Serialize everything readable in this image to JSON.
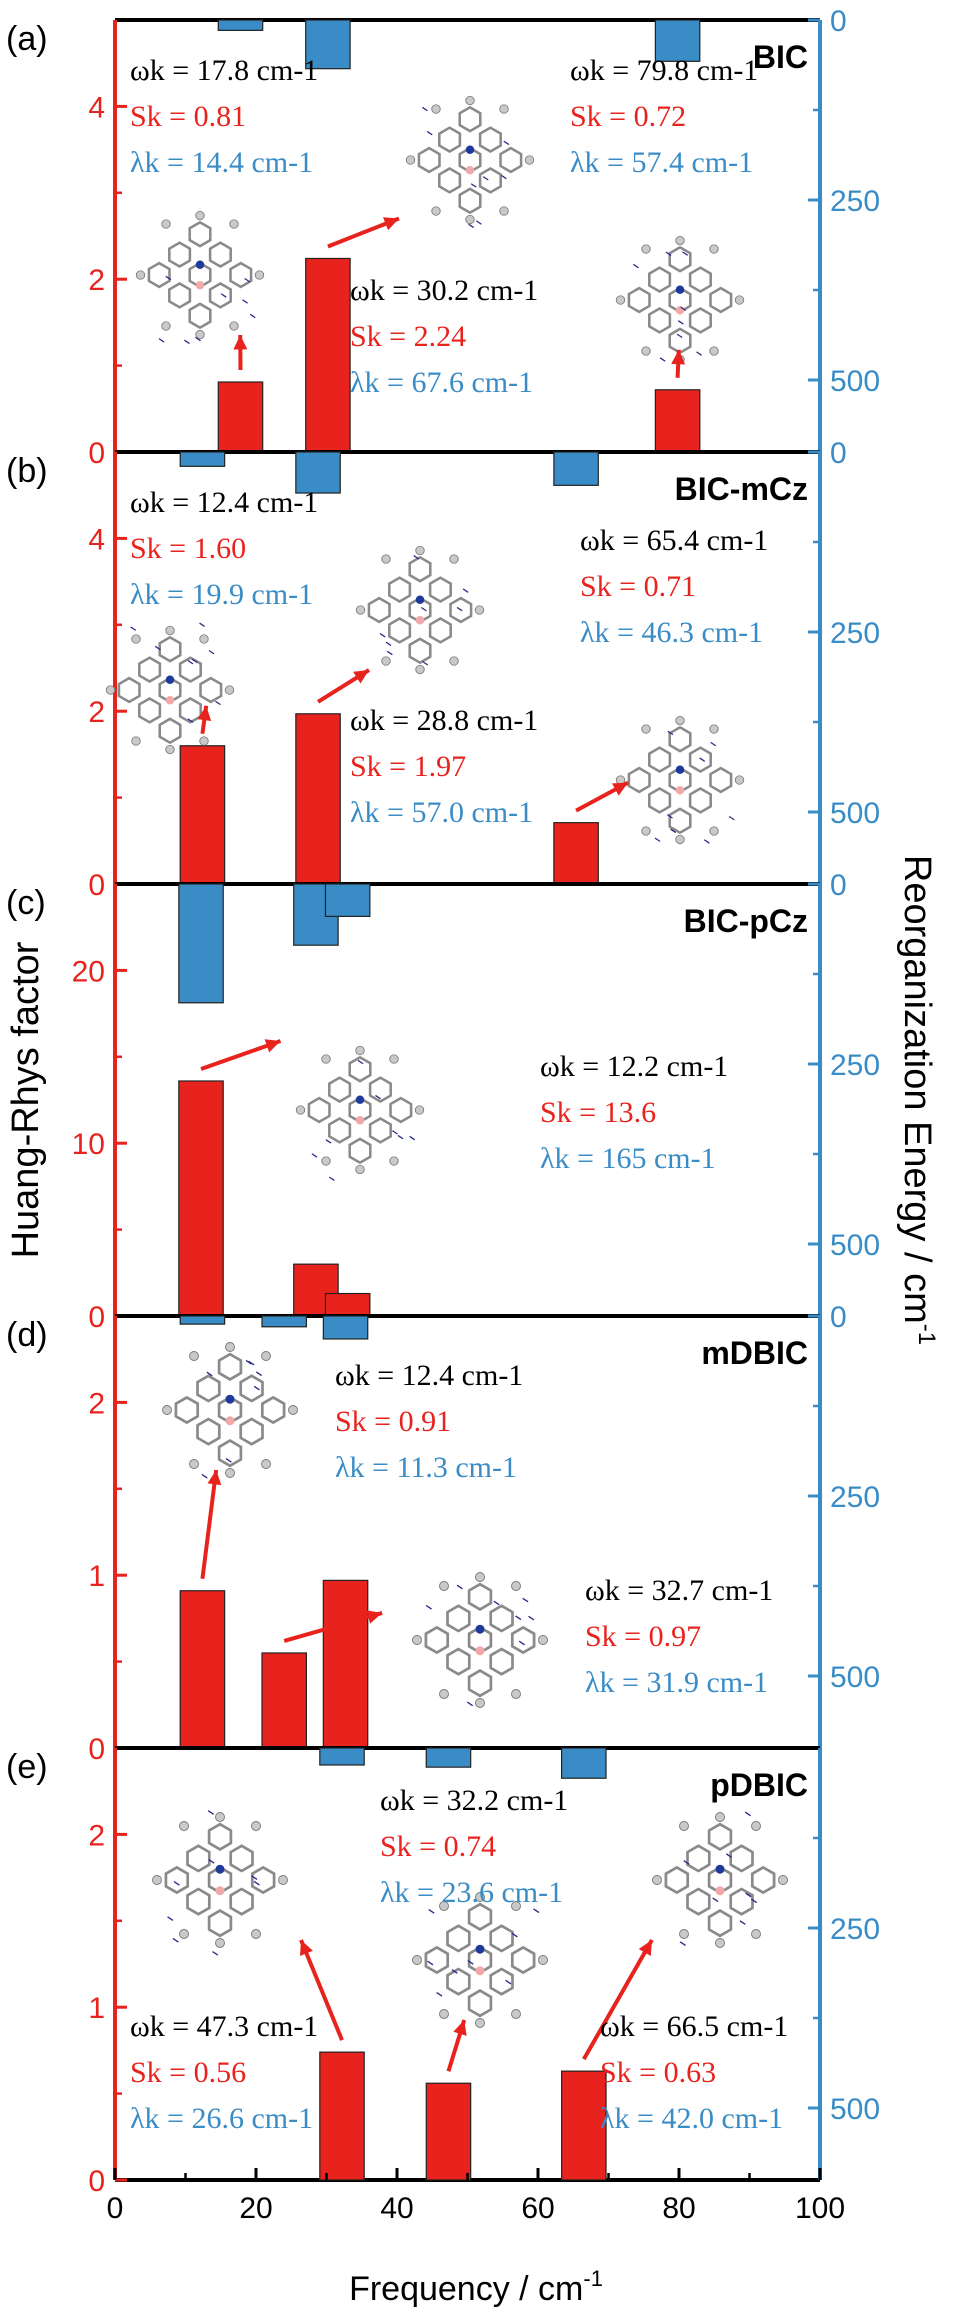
{
  "figure": {
    "xlabel": "Frequency / cm",
    "xlabel_sup": "-1",
    "left_ylabel": "Huang-Rhys factor",
    "right_ylabel": "Reorganization Energy / cm",
    "right_ylabel_sup": "-1",
    "xlim": [
      0,
      100
    ],
    "xticks": [
      "0",
      "20",
      "40",
      "60",
      "80",
      "100"
    ],
    "colors": {
      "huang_rhys": "#e8231d",
      "reorganization": "#3a8cc6",
      "axis_left": "#e8231d",
      "axis_right": "#3a8cc6",
      "text_frequency": "#000000"
    }
  },
  "chart_data": [
    {
      "type": "bar",
      "panel": "(a)",
      "molecule": "BIC",
      "ylim_left": [
        0,
        5
      ],
      "yticks_left": [
        "0",
        "2",
        "4"
      ],
      "ylim_right": [
        0,
        600
      ],
      "yticks_right": [
        "0",
        "250",
        "500"
      ],
      "series": [
        {
          "name": "Huang-Rhys factor",
          "x": [
            17.8,
            30.2,
            79.8
          ],
          "values": [
            0.81,
            2.24,
            0.72
          ]
        },
        {
          "name": "Reorganization Energy",
          "x": [
            17.8,
            30.2,
            79.8
          ],
          "values": [
            14.4,
            67.6,
            57.4
          ]
        }
      ],
      "annotations": [
        {
          "omega": "ωk = 17.8 cm-1",
          "S": "Sk = 0.81",
          "lambda": "λk = 14.4 cm-1"
        },
        {
          "omega": "ωk = 30.2 cm-1",
          "S": "Sk = 2.24",
          "lambda": "λk = 67.6 cm-1"
        },
        {
          "omega": "ωk = 79.8 cm-1",
          "S": "Sk = 0.72",
          "lambda": "λk = 57.4 cm-1"
        }
      ]
    },
    {
      "type": "bar",
      "panel": "(b)",
      "molecule": "BIC-mCz",
      "ylim_left": [
        0,
        5
      ],
      "yticks_left": [
        "0",
        "2",
        "4"
      ],
      "ylim_right": [
        0,
        600
      ],
      "yticks_right": [
        "0",
        "250",
        "500"
      ],
      "series": [
        {
          "name": "Huang-Rhys factor",
          "x": [
            12.4,
            28.8,
            65.4
          ],
          "values": [
            1.6,
            1.97,
            0.71
          ]
        },
        {
          "name": "Reorganization Energy",
          "x": [
            12.4,
            28.8,
            65.4
          ],
          "values": [
            19.9,
            57.0,
            46.3
          ]
        }
      ],
      "annotations": [
        {
          "omega": "ωk = 12.4 cm-1",
          "S": "Sk = 1.60",
          "lambda": "λk = 19.9 cm-1"
        },
        {
          "omega": "ωk = 28.8 cm-1",
          "S": "Sk = 1.97",
          "lambda": "λk = 57.0 cm-1"
        },
        {
          "omega": "ωk = 65.4 cm-1",
          "S": "Sk = 0.71",
          "lambda": "λk = 46.3 cm-1"
        }
      ]
    },
    {
      "type": "bar",
      "panel": "(c)",
      "molecule": "BIC-pCz",
      "ylim_left": [
        0,
        25
      ],
      "yticks_left": [
        "0",
        "10",
        "20"
      ],
      "ylim_right": [
        0,
        600
      ],
      "yticks_right": [
        "0",
        "250",
        "500"
      ],
      "series": [
        {
          "name": "Huang-Rhys factor",
          "x": [
            12.2,
            28.5,
            33.0
          ],
          "values": [
            13.6,
            3.0,
            1.3
          ]
        },
        {
          "name": "Reorganization Energy",
          "x": [
            12.2,
            28.5,
            33.0
          ],
          "values": [
            165,
            85,
            45
          ]
        }
      ],
      "annotations": [
        {
          "omega": "ωk = 12.2 cm-1",
          "S": "Sk = 13.6",
          "lambda": "λk = 165 cm-1"
        }
      ]
    },
    {
      "type": "bar",
      "panel": "(d)",
      "molecule": "mDBIC",
      "ylim_left": [
        0,
        2.5
      ],
      "yticks_left": [
        "0",
        "1",
        "2"
      ],
      "ylim_right": [
        0,
        600
      ],
      "yticks_right": [
        "0",
        "250",
        "500"
      ],
      "series": [
        {
          "name": "Huang-Rhys factor",
          "x": [
            12.4,
            24.0,
            32.7
          ],
          "values": [
            0.91,
            0.55,
            0.97
          ]
        },
        {
          "name": "Reorganization Energy",
          "x": [
            12.4,
            24.0,
            32.7
          ],
          "values": [
            11.3,
            15,
            31.9
          ]
        }
      ],
      "annotations": [
        {
          "omega": "ωk = 12.4 cm-1",
          "S": "Sk = 0.91",
          "lambda": "λk = 11.3 cm-1"
        },
        {
          "omega": "ωk = 32.7 cm-1",
          "S": "Sk = 0.97",
          "lambda": "λk = 31.9 cm-1"
        }
      ]
    },
    {
      "type": "bar",
      "panel": "(e)",
      "molecule": "pDBIC",
      "ylim_left": [
        0,
        2.5
      ],
      "yticks_left": [
        "0",
        "1",
        "2"
      ],
      "ylim_right": [
        0,
        600
      ],
      "yticks_right": [
        "250",
        "500"
      ],
      "series": [
        {
          "name": "Huang-Rhys factor",
          "x": [
            32.2,
            47.3,
            66.5
          ],
          "values": [
            0.74,
            0.56,
            0.63
          ]
        },
        {
          "name": "Reorganization Energy",
          "x": [
            32.2,
            47.3,
            66.5
          ],
          "values": [
            23.6,
            26.6,
            42.0
          ]
        }
      ],
      "annotations": [
        {
          "omega": "ωk = 32.2 cm-1",
          "S": "Sk = 0.74",
          "lambda": "λk = 23.6 cm-1"
        },
        {
          "omega": "ωk = 47.3 cm-1",
          "S": "Sk = 0.56",
          "lambda": "λk = 26.6 cm-1"
        },
        {
          "omega": "ωk = 66.5 cm-1",
          "S": "Sk = 0.63",
          "lambda": "λk = 42.0 cm-1"
        }
      ]
    }
  ]
}
